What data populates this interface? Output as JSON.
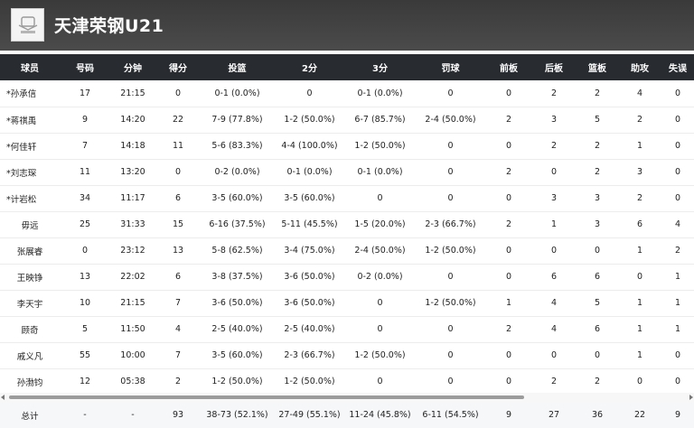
{
  "team": {
    "name": "天津荣钢U21",
    "logo_icon": "team-logo-icon"
  },
  "columns": [
    "球员",
    "号码",
    "分钟",
    "得分",
    "投篮",
    "2分",
    "3分",
    "罚球",
    "前板",
    "后板",
    "篮板",
    "助攻",
    "失误"
  ],
  "players": [
    {
      "name": "*孙承信",
      "number": "17",
      "minutes": "21:15",
      "points": "0",
      "fg": "0-1 (0.0%)",
      "two": "0",
      "three": "0-1 (0.0%)",
      "ft": "0",
      "oreb": "0",
      "dreb": "2",
      "reb": "2",
      "ast": "4",
      "tov": "0"
    },
    {
      "name": "*蒋祺禹",
      "number": "9",
      "minutes": "14:20",
      "points": "22",
      "fg": "7-9 (77.8%)",
      "two": "1-2 (50.0%)",
      "three": "6-7 (85.7%)",
      "ft": "2-4 (50.0%)",
      "oreb": "2",
      "dreb": "3",
      "reb": "5",
      "ast": "2",
      "tov": "0"
    },
    {
      "name": "*何佳轩",
      "number": "7",
      "minutes": "14:18",
      "points": "11",
      "fg": "5-6 (83.3%)",
      "two": "4-4 (100.0%)",
      "three": "1-2 (50.0%)",
      "ft": "0",
      "oreb": "0",
      "dreb": "2",
      "reb": "2",
      "ast": "1",
      "tov": "0"
    },
    {
      "name": "*刘志琛",
      "number": "11",
      "minutes": "13:20",
      "points": "0",
      "fg": "0-2 (0.0%)",
      "two": "0-1 (0.0%)",
      "three": "0-1 (0.0%)",
      "ft": "0",
      "oreb": "2",
      "dreb": "0",
      "reb": "2",
      "ast": "3",
      "tov": "0"
    },
    {
      "name": "*计岩松",
      "number": "34",
      "minutes": "11:17",
      "points": "6",
      "fg": "3-5 (60.0%)",
      "two": "3-5 (60.0%)",
      "three": "0",
      "ft": "0",
      "oreb": "0",
      "dreb": "3",
      "reb": "3",
      "ast": "2",
      "tov": "0"
    },
    {
      "name": "毋远",
      "number": "25",
      "minutes": "31:33",
      "points": "15",
      "fg": "6-16 (37.5%)",
      "two": "5-11 (45.5%)",
      "three": "1-5 (20.0%)",
      "ft": "2-3 (66.7%)",
      "oreb": "2",
      "dreb": "1",
      "reb": "3",
      "ast": "6",
      "tov": "4"
    },
    {
      "name": "张展睿",
      "number": "0",
      "minutes": "23:12",
      "points": "13",
      "fg": "5-8 (62.5%)",
      "two": "3-4 (75.0%)",
      "three": "2-4 (50.0%)",
      "ft": "1-2 (50.0%)",
      "oreb": "0",
      "dreb": "0",
      "reb": "0",
      "ast": "1",
      "tov": "2"
    },
    {
      "name": "王映铮",
      "number": "13",
      "minutes": "22:02",
      "points": "6",
      "fg": "3-8 (37.5%)",
      "two": "3-6 (50.0%)",
      "three": "0-2 (0.0%)",
      "ft": "0",
      "oreb": "0",
      "dreb": "6",
      "reb": "6",
      "ast": "0",
      "tov": "1"
    },
    {
      "name": "李天宇",
      "number": "10",
      "minutes": "21:15",
      "points": "7",
      "fg": "3-6 (50.0%)",
      "two": "3-6 (50.0%)",
      "three": "0",
      "ft": "1-2 (50.0%)",
      "oreb": "1",
      "dreb": "4",
      "reb": "5",
      "ast": "1",
      "tov": "1"
    },
    {
      "name": "顾奇",
      "number": "5",
      "minutes": "11:50",
      "points": "4",
      "fg": "2-5 (40.0%)",
      "two": "2-5 (40.0%)",
      "three": "0",
      "ft": "0",
      "oreb": "2",
      "dreb": "4",
      "reb": "6",
      "ast": "1",
      "tov": "1"
    },
    {
      "name": "戚义凡",
      "number": "55",
      "minutes": "10:00",
      "points": "7",
      "fg": "3-5 (60.0%)",
      "two": "2-3 (66.7%)",
      "three": "1-2 (50.0%)",
      "ft": "0",
      "oreb": "0",
      "dreb": "0",
      "reb": "0",
      "ast": "1",
      "tov": "0"
    },
    {
      "name": "孙渤钧",
      "number": "12",
      "minutes": "05:38",
      "points": "2",
      "fg": "1-2 (50.0%)",
      "two": "1-2 (50.0%)",
      "three": "0",
      "ft": "0",
      "oreb": "0",
      "dreb": "2",
      "reb": "2",
      "ast": "0",
      "tov": "0"
    }
  ],
  "totals": {
    "label": "总计",
    "number": "-",
    "minutes": "-",
    "points": "93",
    "fg": "38-73 (52.1%)",
    "two": "27-49 (55.1%)",
    "three": "11-24 (45.8%)",
    "ft": "6-11 (54.5%)",
    "oreb": "9",
    "dreb": "27",
    "reb": "36",
    "ast": "22",
    "tov": "9"
  },
  "colors": {
    "header_bg": "#3f3f3f",
    "table_header_bg": "#282c31",
    "totals_bg": "#f6f7f9"
  }
}
